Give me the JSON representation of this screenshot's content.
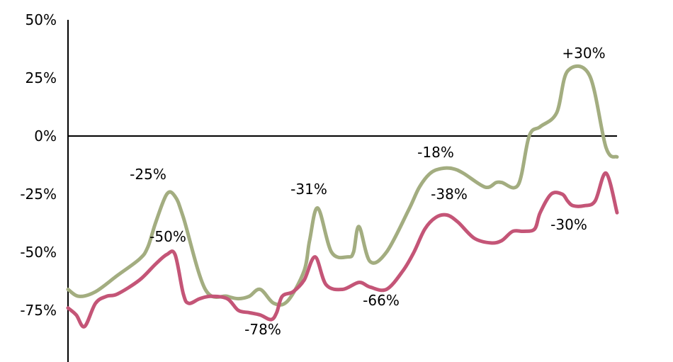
{
  "chart_data": {
    "type": "line",
    "ylim": [
      -100,
      50
    ],
    "yticks": [
      {
        "value": 50,
        "label": "50%"
      },
      {
        "value": 25,
        "label": "25%"
      },
      {
        "value": 0,
        "label": "0%"
      },
      {
        "value": -25,
        "label": "-25%"
      },
      {
        "value": -50,
        "label": "-50%"
      },
      {
        "value": -75,
        "label": "-75%"
      }
    ],
    "xlim": [
      0,
      100
    ],
    "grid": false,
    "series": [
      {
        "color": "#a3ad80",
        "x": [
          0,
          2,
          5,
          9,
          13,
          14.5,
          16,
          18,
          19.5,
          21,
          25,
          29,
          31,
          33,
          35,
          37.5,
          40,
          43,
          44,
          45.5,
          48,
          51,
          52,
          53,
          55,
          58,
          62,
          64,
          66,
          68,
          70,
          72,
          76,
          78,
          79,
          82,
          84,
          86,
          89,
          91,
          95,
          98,
          100
        ],
        "y": [
          -66,
          -69,
          -67,
          -60,
          -53,
          -48,
          -37,
          -25,
          -26,
          -35,
          -66,
          -69,
          -70,
          -69,
          -66,
          -72,
          -71,
          -58,
          -45,
          -31,
          -50,
          -52,
          -50,
          -39,
          -54,
          -50,
          -32,
          -22,
          -16,
          -14,
          -14,
          -16,
          -22,
          -20,
          -20,
          -21,
          0,
          4,
          10,
          28,
          26,
          -5,
          -9
        ]
      },
      {
        "color": "#c45577",
        "x": [
          0,
          1.5,
          3,
          5,
          7,
          9,
          13,
          16,
          18,
          19.5,
          21,
          22,
          24,
          26,
          29,
          31,
          33,
          35,
          37,
          38,
          39,
          41,
          43,
          45,
          47,
          50,
          53,
          55,
          58,
          61,
          63,
          65,
          67,
          69,
          71,
          74,
          77,
          79,
          81,
          83,
          85,
          86,
          88,
          90,
          91,
          92,
          94,
          96,
          98,
          100
        ],
        "y": [
          -74,
          -77,
          -82,
          -72,
          -69,
          -68,
          -62,
          -55,
          -51,
          -51,
          -68,
          -72,
          -70,
          -69,
          -70,
          -75,
          -76,
          -77,
          -79,
          -76,
          -69,
          -67,
          -62,
          -52,
          -64,
          -66,
          -63,
          -65,
          -66,
          -58,
          -50,
          -40,
          -35,
          -34,
          -37,
          -44,
          -46,
          -45,
          -41,
          -41,
          -40,
          -33,
          -25,
          -25,
          -28,
          -30,
          -30,
          -28,
          -16,
          -33
        ]
      }
    ],
    "annotations": [
      {
        "text": "-25%"
      },
      {
        "text": "-50%"
      },
      {
        "text": "-78%"
      },
      {
        "text": "-31%"
      },
      {
        "text": "-66%"
      },
      {
        "text": "-18%"
      },
      {
        "text": "-38%"
      },
      {
        "text": "+30%"
      },
      {
        "text": "-30%"
      }
    ]
  }
}
